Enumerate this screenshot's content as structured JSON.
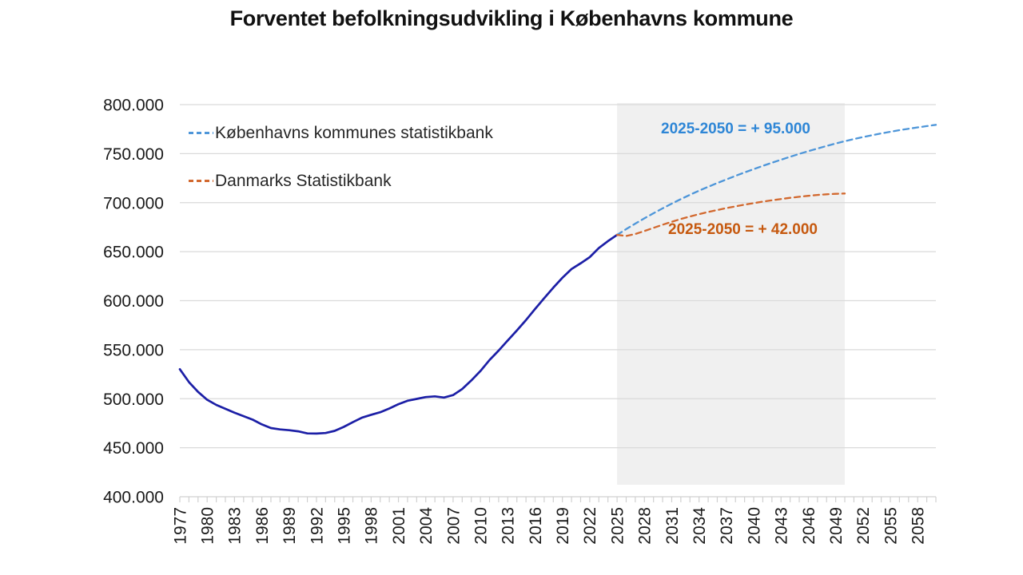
{
  "page": {
    "title": "Forventet befolkningsudvikling i Københavns kommune"
  },
  "legend": {
    "items": [
      {
        "id": "kk",
        "label": "Københavns kommunes statistikbank"
      },
      {
        "id": "dst",
        "label": "Danmarks Statistikbank"
      }
    ]
  },
  "annotations": {
    "kk": "2025-2050 = + 95.000",
    "dst": "2025-2050 = + 42.000"
  },
  "colors": {
    "historical_line": "#1c1fa6",
    "kk_line": "#4e96d9",
    "kk_text": "#2e86d6",
    "dst_line": "#d2682e",
    "dst_text": "#c6590f",
    "grid_line": "#dadada",
    "axis_line": "#d0d0d0",
    "shade_region": "#f0f0f0",
    "axis_text": "#1a1a1a",
    "title_text": "#111111",
    "legend_text": "#262626"
  },
  "chart_data": {
    "type": "line",
    "title": "Forventet befolkningsudvikling i Københavns kommune",
    "grid": "horizontal",
    "legend_position": "top-left-inside",
    "x_axis": {
      "range": [
        1977,
        2060
      ],
      "tick_years": [
        1977,
        1980,
        1983,
        1986,
        1989,
        1992,
        1995,
        1998,
        2001,
        2004,
        2007,
        2010,
        2013,
        2016,
        2019,
        2022,
        2025,
        2028,
        2031,
        2034,
        2037,
        2040,
        2043,
        2046,
        2049,
        2052,
        2055,
        2058
      ],
      "minor_tick_every": 1
    },
    "y_axis": {
      "range": [
        400000,
        800000
      ],
      "ticks": [
        {
          "value": 400000,
          "label": "400.000"
        },
        {
          "value": 450000,
          "label": "450.000"
        },
        {
          "value": 500000,
          "label": "500.000"
        },
        {
          "value": 550000,
          "label": "550.000"
        },
        {
          "value": 600000,
          "label": "600.000"
        },
        {
          "value": 650000,
          "label": "650.000"
        },
        {
          "value": 700000,
          "label": "700.000"
        },
        {
          "value": 750000,
          "label": "750.000"
        },
        {
          "value": 800000,
          "label": "800.000"
        }
      ]
    },
    "highlight_region": {
      "from_year": 2025,
      "to_year": 2050
    },
    "series": [
      {
        "id": "historical",
        "legend_label": null,
        "color_key": "historical_line",
        "line_style": "solid",
        "points": [
          [
            1977,
            530100
          ],
          [
            1978,
            517000
          ],
          [
            1979,
            507000
          ],
          [
            1980,
            498900
          ],
          [
            1981,
            493700
          ],
          [
            1982,
            489700
          ],
          [
            1983,
            485800
          ],
          [
            1984,
            482200
          ],
          [
            1985,
            478600
          ],
          [
            1986,
            473800
          ],
          [
            1987,
            470100
          ],
          [
            1988,
            468700
          ],
          [
            1989,
            467900
          ],
          [
            1990,
            466700
          ],
          [
            1991,
            464600
          ],
          [
            1992,
            464400
          ],
          [
            1993,
            465000
          ],
          [
            1994,
            467200
          ],
          [
            1995,
            471300
          ],
          [
            1996,
            476100
          ],
          [
            1997,
            480700
          ],
          [
            1998,
            483600
          ],
          [
            1999,
            486200
          ],
          [
            2000,
            490000
          ],
          [
            2001,
            494400
          ],
          [
            2002,
            497900
          ],
          [
            2003,
            499800
          ],
          [
            2004,
            501700
          ],
          [
            2005,
            502400
          ],
          [
            2006,
            501200
          ],
          [
            2007,
            503700
          ],
          [
            2008,
            509900
          ],
          [
            2009,
            518600
          ],
          [
            2010,
            528200
          ],
          [
            2011,
            539500
          ],
          [
            2012,
            549100
          ],
          [
            2013,
            559400
          ],
          [
            2014,
            569600
          ],
          [
            2015,
            580200
          ],
          [
            2016,
            591500
          ],
          [
            2017,
            602500
          ],
          [
            2018,
            613300
          ],
          [
            2019,
            623400
          ],
          [
            2020,
            632300
          ],
          [
            2021,
            638100
          ],
          [
            2022,
            644400
          ],
          [
            2023,
            653700
          ],
          [
            2024,
            660800
          ],
          [
            2025,
            667100
          ]
        ]
      },
      {
        "id": "kk",
        "legend_label": "Københavns kommunes statistikbank",
        "annotation": "2025-2050 = + 95.000",
        "color_key": "kk_line",
        "line_style": "dashed",
        "points": [
          [
            2025,
            667100
          ],
          [
            2026,
            673000
          ],
          [
            2027,
            678600
          ],
          [
            2028,
            684000
          ],
          [
            2029,
            689200
          ],
          [
            2030,
            694200
          ],
          [
            2031,
            699000
          ],
          [
            2032,
            703600
          ],
          [
            2033,
            708000
          ],
          [
            2034,
            712200
          ],
          [
            2035,
            716200
          ],
          [
            2036,
            720000
          ],
          [
            2037,
            723700
          ],
          [
            2038,
            727300
          ],
          [
            2039,
            730800
          ],
          [
            2040,
            734200
          ],
          [
            2041,
            737500
          ],
          [
            2042,
            740700
          ],
          [
            2043,
            743800
          ],
          [
            2044,
            746800
          ],
          [
            2045,
            749700
          ],
          [
            2046,
            752500
          ],
          [
            2047,
            755200
          ],
          [
            2048,
            757800
          ],
          [
            2049,
            760300
          ],
          [
            2050,
            762700
          ],
          [
            2051,
            764900
          ],
          [
            2052,
            766900
          ],
          [
            2053,
            768800
          ],
          [
            2054,
            770600
          ],
          [
            2055,
            772300
          ],
          [
            2056,
            773900
          ],
          [
            2057,
            775400
          ],
          [
            2058,
            776800
          ],
          [
            2059,
            778100
          ],
          [
            2060,
            779400
          ]
        ]
      },
      {
        "id": "dst",
        "legend_label": "Danmarks Statistikbank",
        "annotation": "2025-2050 = + 42.000",
        "color_key": "dst_line",
        "line_style": "dashed",
        "points": [
          [
            2025,
            667100
          ],
          [
            2026,
            666000
          ],
          [
            2027,
            668000
          ],
          [
            2028,
            671000
          ],
          [
            2029,
            674300
          ],
          [
            2030,
            677500
          ],
          [
            2031,
            680500
          ],
          [
            2032,
            683300
          ],
          [
            2033,
            685900
          ],
          [
            2034,
            688300
          ],
          [
            2035,
            690500
          ],
          [
            2036,
            692500
          ],
          [
            2037,
            694400
          ],
          [
            2038,
            696200
          ],
          [
            2039,
            697900
          ],
          [
            2040,
            699500
          ],
          [
            2041,
            701000
          ],
          [
            2042,
            702400
          ],
          [
            2043,
            703700
          ],
          [
            2044,
            704900
          ],
          [
            2045,
            706000
          ],
          [
            2046,
            707000
          ],
          [
            2047,
            707900
          ],
          [
            2048,
            708500
          ],
          [
            2049,
            709000
          ],
          [
            2050,
            709300
          ]
        ]
      }
    ]
  }
}
